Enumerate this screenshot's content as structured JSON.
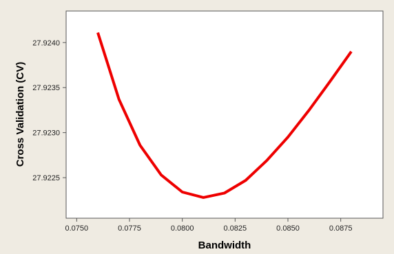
{
  "chart_data": {
    "type": "line",
    "title": "",
    "xlabel": "Bandwidth",
    "ylabel": "Cross Validation (CV)",
    "xlim": [
      0.0745,
      0.0895
    ],
    "ylim": [
      27.92205,
      27.92435
    ],
    "x_ticks": [
      0.075,
      0.0775,
      0.08,
      0.0825,
      0.085,
      0.0875
    ],
    "x_tick_labels": [
      "0.0750",
      "0.0775",
      "0.0800",
      "0.0825",
      "0.0850",
      "0.0875"
    ],
    "y_ticks": [
      27.9225,
      27.923,
      27.9235,
      27.924
    ],
    "y_tick_labels": [
      "27.9225",
      "27.9230",
      "27.9235",
      "27.9240"
    ],
    "grid": false,
    "legend": "none",
    "series": [
      {
        "color": "#ee0000",
        "x": [
          0.076,
          0.077,
          0.078,
          0.079,
          0.08,
          0.081,
          0.082,
          0.083,
          0.084,
          0.085,
          0.086,
          0.087,
          0.088
        ],
        "y": [
          27.92411,
          27.92337,
          27.92286,
          27.92253,
          27.92234,
          27.92228,
          27.92233,
          27.92247,
          27.92269,
          27.92295,
          27.92325,
          27.92357,
          27.9239
        ]
      }
    ]
  }
}
